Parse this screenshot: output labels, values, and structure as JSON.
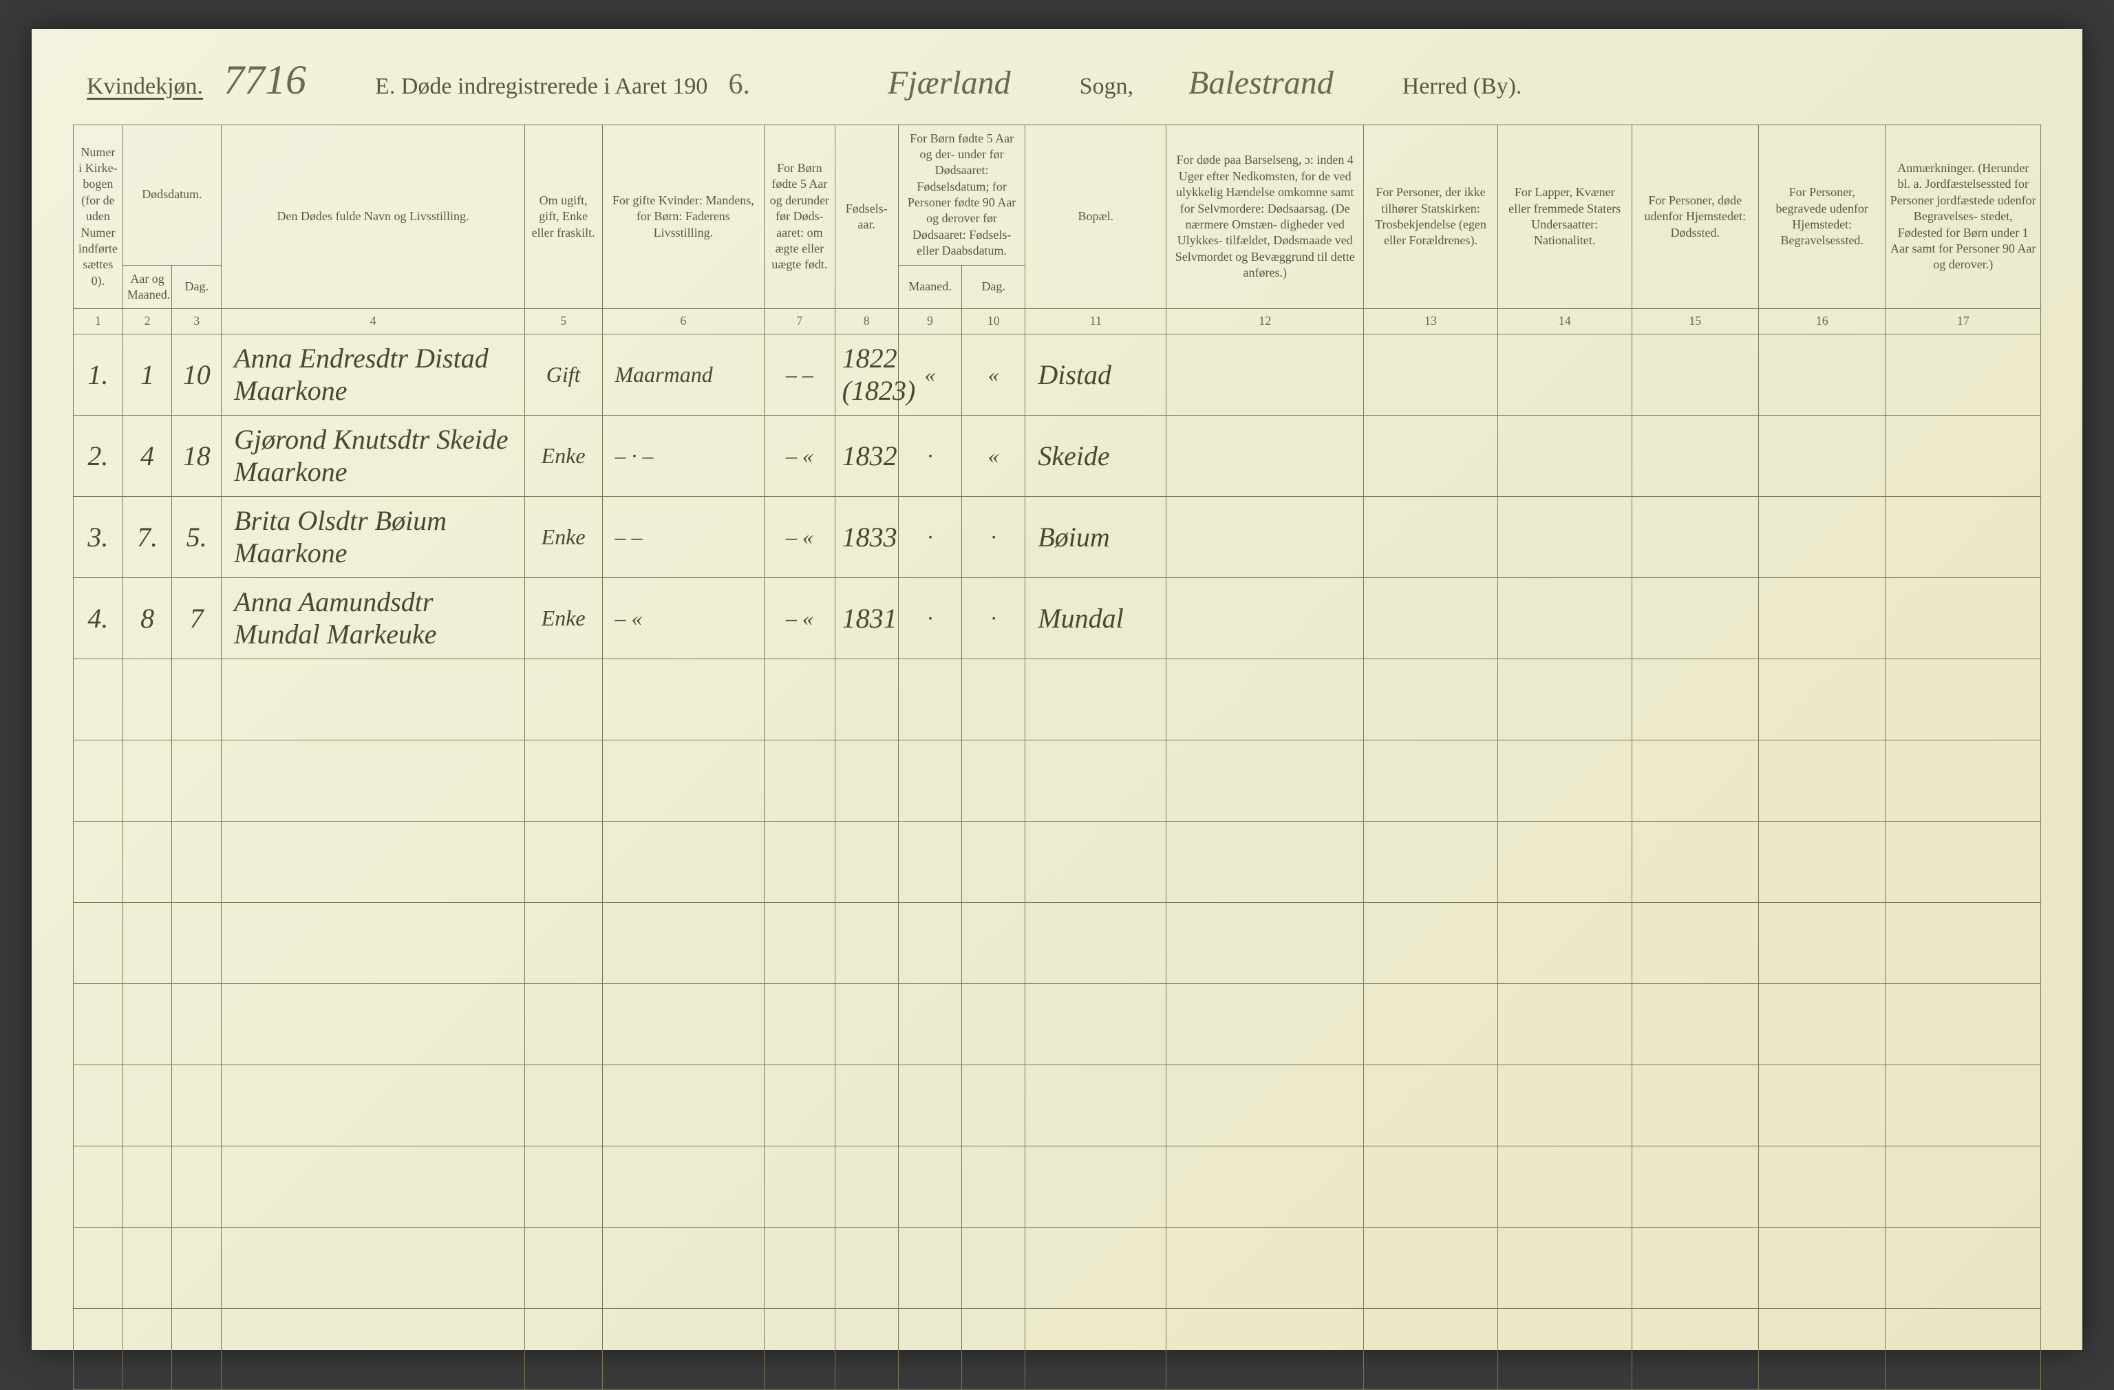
{
  "header": {
    "kvindekjon": "Kvindekjøn.",
    "handwritten_number": "7716",
    "title_prefix": "E.  Døde indregistrerede i Aaret 190",
    "year_suffix": "6.",
    "sogn_value": "Fjærland",
    "sogn_label": "Sogn,",
    "herred_value": "Balestrand",
    "herred_label": "Herred (By)."
  },
  "columns": {
    "c1": "Numer i Kirke- bogen (for de uden Numer indførte sættes 0).",
    "c2_3_top": "Dødsdatum.",
    "c2": "Aar og Maaned.",
    "c3": "Dag.",
    "c4": "Den Dødes fulde Navn og Livsstilling.",
    "c5": "Om ugift, gift, Enke eller fraskilt.",
    "c6": "For gifte Kvinder: Mandens, for Børn: Faderens Livsstilling.",
    "c7": "For Børn fødte 5 Aar og derunder før Døds- aaret: om ægte eller uægte født.",
    "c8": "Fødsels- aar.",
    "c9_10_top": "For Børn fødte 5 Aar og der- under før Dødsaaret: Fødselsdatum; for Personer fødte 90 Aar og derover før Dødsaaret: Fødsels- eller Daabsdatum.",
    "c9": "Maaned.",
    "c10": "Dag.",
    "c11": "Bopæl.",
    "c12": "For døde paa Barselseng, ɔ: inden 4 Uger efter Nedkomsten, for de ved ulykkelig Hændelse omkomne samt for Selvmordere: Dødsaarsag. (De nærmere Omstæn- digheder ved Ulykkes- tilfældet, Dødsmaade ved Selvmordet og Bevæggrund til dette anføres.)",
    "c13": "For Personer, der ikke tilhører Statskirken: Trosbekjendelse (egen eller Forældrenes).",
    "c14": "For Lapper, Kvæner eller fremmede Staters Undersaatter: Nationalitet.",
    "c15": "For Personer, døde udenfor Hjemstedet: Dødssted.",
    "c16": "For Personer, begravede udenfor Hjemstedet: Begravelsessted.",
    "c17": "Anmærkninger. (Herunder bl. a. Jordfæstelsessted for Personer jordfæstede udenfor Begravelses- stedet, Fødested for Børn under 1 Aar samt for Personer 90 Aar og derover.)"
  },
  "colnums": [
    "1",
    "2",
    "3",
    "4",
    "5",
    "6",
    "7",
    "8",
    "9",
    "10",
    "11",
    "12",
    "13",
    "14",
    "15",
    "16",
    "17"
  ],
  "rows": [
    {
      "num": "1.",
      "maaned": "1",
      "dag": "10",
      "navn": "Anna Endresdtr Distad Maarkone",
      "status": "Gift",
      "mand": "Maarmand",
      "c7": "– –",
      "aar": "1822 (1823)",
      "c9": "«",
      "c10": "«",
      "bopael": "Distad"
    },
    {
      "num": "2.",
      "maaned": "4",
      "dag": "18",
      "navn": "Gjørond Knutsdtr Skeide Maarkone",
      "status": "Enke",
      "mand": "– · –",
      "c7": "– «",
      "aar": "1832",
      "c9": "·",
      "c10": "«",
      "bopael": "Skeide"
    },
    {
      "num": "3.",
      "maaned": "7.",
      "dag": "5.",
      "navn": "Brita Olsdtr Bøium Maarkone",
      "status": "Enke",
      "mand": "– –",
      "c7": "– «",
      "aar": "1833",
      "c9": "·",
      "c10": "·",
      "bopael": "Bøium"
    },
    {
      "num": "4.",
      "maaned": "8",
      "dag": "7",
      "navn": "Anna Aamundsdtr Mundal Markeuke",
      "status": "Enke",
      "mand": "– «",
      "c7": "– «",
      "aar": "1831",
      "c9": "·",
      "c10": "·",
      "bopael": "Mundal"
    }
  ],
  "empty_row_count": 9,
  "style": {
    "page_bg": "#eeeccf",
    "border_color": "#7a7858",
    "printed_text_color": "#5a5840",
    "hand_text_color": "#4a4830",
    "header_fontsize_pt": 26,
    "th_fontsize_pt": 13,
    "hand_fontsize_pt": 30
  }
}
